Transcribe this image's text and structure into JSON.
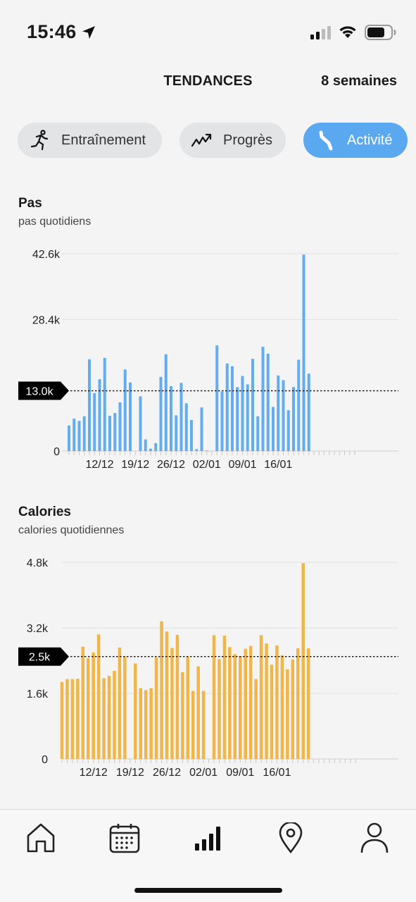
{
  "status": {
    "time": "15:46"
  },
  "header": {
    "title": "TENDANCES",
    "period": "8 semaines"
  },
  "tabs": [
    {
      "label": "Entraînement",
      "icon": "running-icon",
      "active": false
    },
    {
      "label": "Progrès",
      "icon": "trend-icon",
      "active": false
    },
    {
      "label": "Activité",
      "icon": "activity-icon",
      "active": true
    }
  ],
  "colors": {
    "accent": "#5aa8f0",
    "steps": "#62adf2",
    "calories": "#f0b64a"
  },
  "chart_data": [
    {
      "type": "bar",
      "title": "Pas",
      "subtitle": "pas quotidiens",
      "yticks": [
        "0",
        "13.0k",
        "28.4k",
        "42.6k"
      ],
      "ylim": [
        0,
        42600
      ],
      "average_label": "13.0k",
      "average": 13000,
      "xtick_labels": [
        "12/12",
        "19/12",
        "26/12",
        "02/01",
        "09/01",
        "16/01"
      ],
      "x": [
        "06/12",
        "07/12",
        "08/12",
        "09/12",
        "10/12",
        "11/12",
        "12/12",
        "13/12",
        "14/12",
        "15/12",
        "16/12",
        "17/12",
        "18/12",
        "19/12",
        "20/12",
        "21/12",
        "22/12",
        "23/12",
        "24/12",
        "25/12",
        "26/12",
        "27/12",
        "28/12",
        "29/12",
        "30/12",
        "31/12",
        "01/01",
        "02/01",
        "03/01",
        "04/01",
        "05/01",
        "06/01",
        "07/01",
        "08/01",
        "09/01",
        "10/01",
        "11/01",
        "12/01",
        "13/01",
        "14/01",
        "15/01",
        "16/01",
        "17/01",
        "18/01",
        "19/01",
        "20/01",
        "21/01",
        "22/01",
        "23/01",
        "24/01",
        "25/01",
        "26/01",
        "27/01",
        "28/01",
        "29/01",
        "30/01",
        "31/01"
      ],
      "values": [
        5500,
        7000,
        6500,
        7500,
        19800,
        12500,
        15500,
        20100,
        7600,
        8200,
        10500,
        17600,
        14800,
        0,
        11800,
        2500,
        500,
        1700,
        16000,
        20900,
        14000,
        7700,
        14700,
        10300,
        6700,
        400,
        9400,
        100,
        0,
        22800,
        12800,
        18900,
        18300,
        13800,
        16200,
        14400,
        19900,
        7500,
        22500,
        21000,
        9500,
        16300,
        15300,
        8800,
        13800,
        19700,
        42400,
        16700,
        0,
        0,
        0,
        0,
        0,
        0,
        0,
        0,
        0
      ]
    },
    {
      "type": "bar",
      "title": "Calories",
      "subtitle": "calories quotidiennes",
      "yticks": [
        "0",
        "1.6k",
        "2.5k",
        "3.2k",
        "4.8k"
      ],
      "ylim": [
        0,
        4800
      ],
      "average_label": "2.5k",
      "average": 2500,
      "xtick_labels": [
        "12/12",
        "19/12",
        "26/12",
        "02/01",
        "09/01",
        "16/01"
      ],
      "x": [
        "06/12",
        "07/12",
        "08/12",
        "09/12",
        "10/12",
        "11/12",
        "12/12",
        "13/12",
        "14/12",
        "15/12",
        "16/12",
        "17/12",
        "18/12",
        "19/12",
        "20/12",
        "21/12",
        "22/12",
        "23/12",
        "24/12",
        "25/12",
        "26/12",
        "27/12",
        "28/12",
        "29/12",
        "30/12",
        "31/12",
        "01/01",
        "02/01",
        "03/01",
        "04/01",
        "05/01",
        "06/01",
        "07/01",
        "08/01",
        "09/01",
        "10/01",
        "11/01",
        "12/01",
        "13/01",
        "14/01",
        "15/01",
        "16/01",
        "17/01",
        "18/01",
        "19/01",
        "20/01",
        "21/01",
        "22/01",
        "23/01",
        "24/01",
        "25/01",
        "26/01",
        "27/01",
        "28/01",
        "29/01",
        "30/01",
        "31/01"
      ],
      "values": [
        1880,
        1950,
        1950,
        1960,
        2740,
        2460,
        2600,
        3040,
        1970,
        2030,
        2150,
        2720,
        2500,
        0,
        2330,
        1730,
        1680,
        1730,
        2480,
        3360,
        3110,
        2710,
        3030,
        2120,
        2490,
        1660,
        2260,
        1660,
        0,
        3020,
        2440,
        3010,
        2730,
        2560,
        2510,
        2690,
        2760,
        1950,
        3020,
        2820,
        2300,
        2770,
        2530,
        2190,
        2430,
        2700,
        4780,
        2700,
        0,
        0,
        0,
        0,
        0,
        0,
        0,
        0,
        0
      ]
    }
  ],
  "nav": [
    {
      "name": "home-icon"
    },
    {
      "name": "calendar-icon"
    },
    {
      "name": "stats-icon"
    },
    {
      "name": "location-icon"
    },
    {
      "name": "profile-icon"
    }
  ]
}
